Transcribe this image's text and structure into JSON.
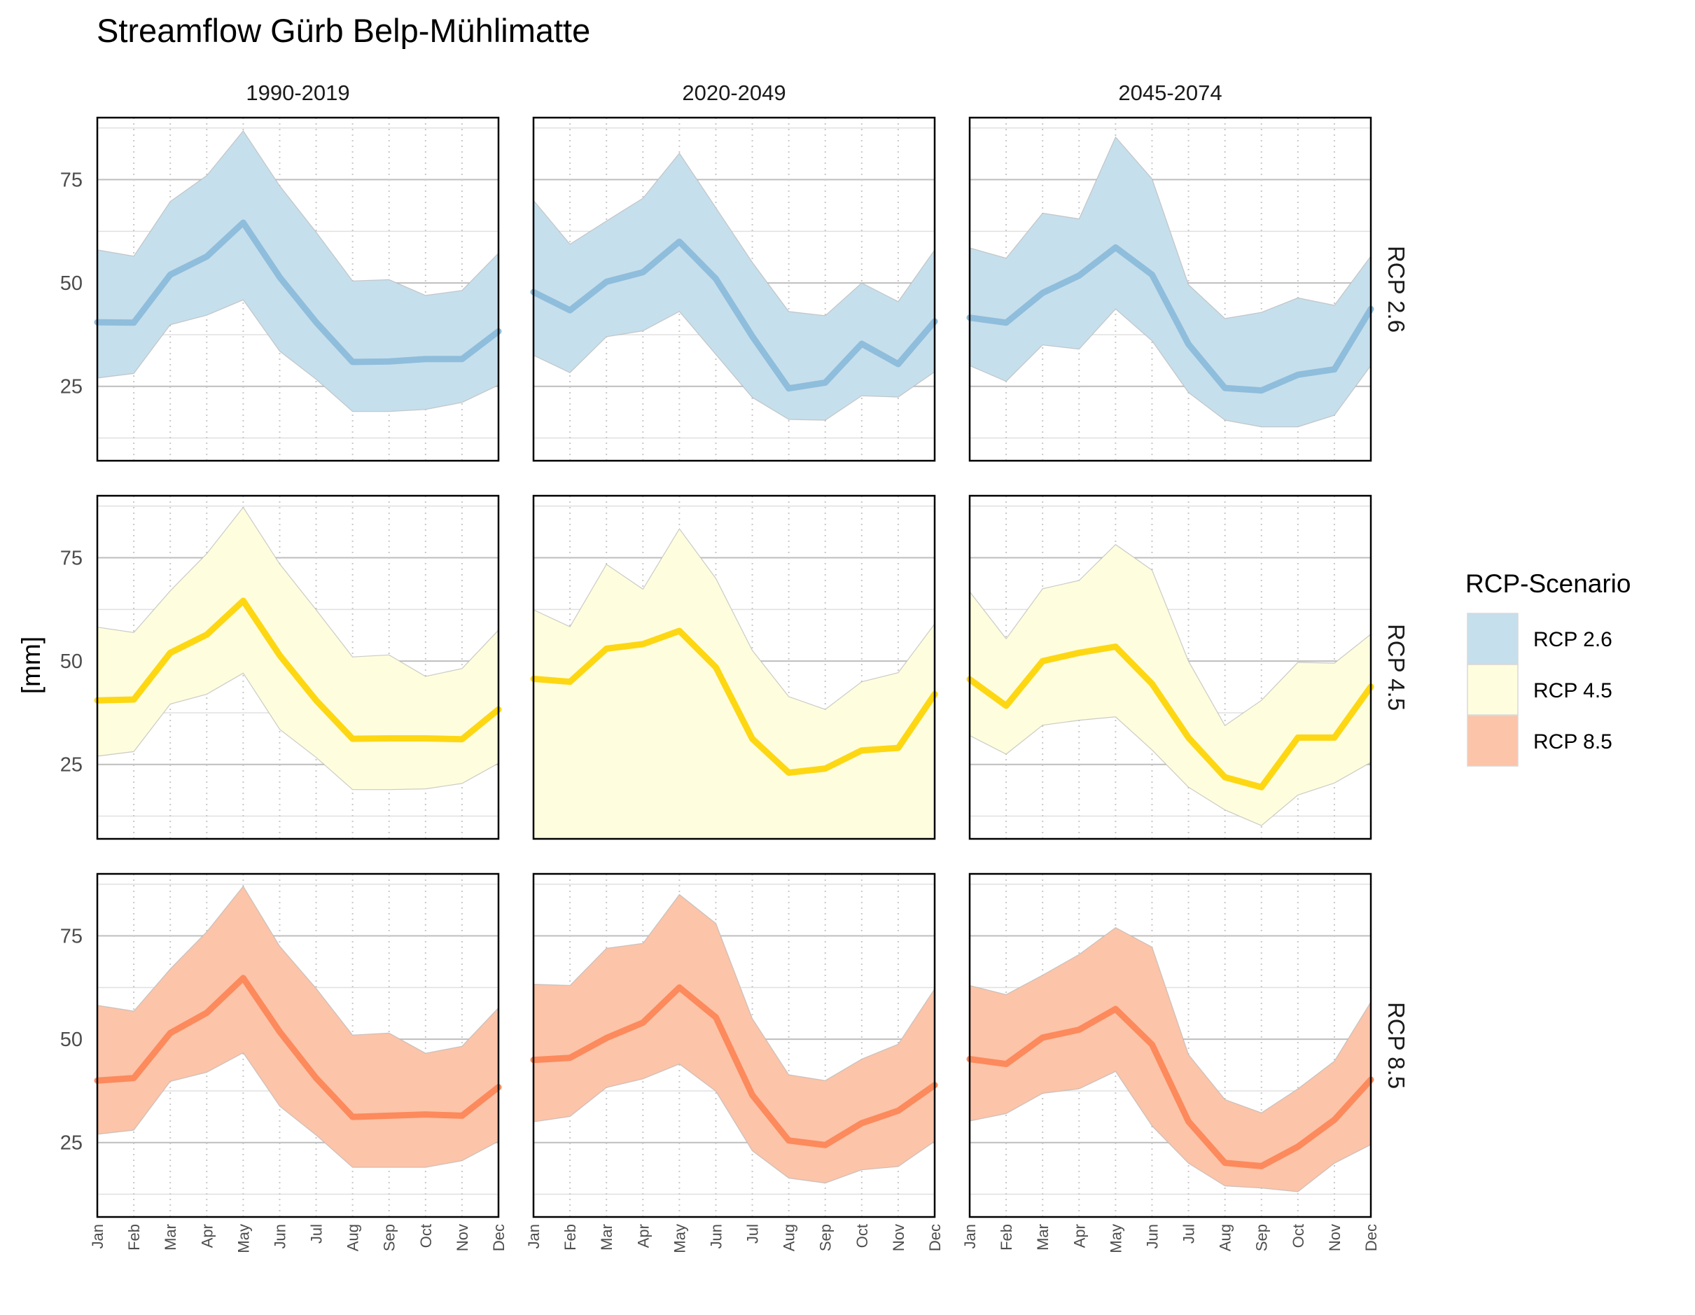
{
  "chart_data": {
    "type": "area",
    "title": "Streamflow Gürb Belp-Mühlimatte",
    "ylabel": "[mm]",
    "xlabel": "",
    "ylim": [
      7,
      90
    ],
    "yticks": [
      25,
      50,
      75
    ],
    "categories": [
      "Jan",
      "Feb",
      "Mar",
      "Apr",
      "May",
      "Jun",
      "Jul",
      "Aug",
      "Sep",
      "Oct",
      "Nov",
      "Dec"
    ],
    "columns": [
      "1990-2019",
      "2020-2049",
      "2045-2074"
    ],
    "rows": [
      "RCP 2.6",
      "RCP 4.5",
      "RCP 8.5"
    ],
    "legend": {
      "title": "RCP-Scenario",
      "position": "right",
      "items": [
        {
          "label": "RCP 2.6",
          "fill": "#c6dfec",
          "line": "#8fbddc"
        },
        {
          "label": "RCP 4.5",
          "fill": "#fefdde",
          "line": "#fdd712"
        },
        {
          "label": "RCP 8.5",
          "fill": "#fcc4a9",
          "line": "#fc8a5c"
        }
      ]
    },
    "panels": [
      {
        "row": "RCP 2.6",
        "col": "1990-2019",
        "median": [
          40.5,
          40.4,
          52,
          56.4,
          64.6,
          51.4,
          40.5,
          30.9,
          31,
          31.6,
          31.6,
          38.3
        ],
        "upper": [
          58,
          56.5,
          69.7,
          76,
          86.8,
          73.5,
          62.3,
          50.5,
          50.8,
          47,
          48.2,
          57.2
        ],
        "lower": [
          27,
          28.1,
          39.9,
          42.2,
          45.9,
          33.5,
          26.7,
          18.9,
          18.9,
          19.4,
          21.1,
          25.3
        ]
      },
      {
        "row": "RCP 2.6",
        "col": "2020-2049",
        "median": [
          47.8,
          43.4,
          50.3,
          52.6,
          60,
          51,
          37.1,
          24.5,
          25.9,
          35.3,
          30.4,
          40.7
        ],
        "upper": [
          70,
          59.4,
          65,
          70.5,
          81.4,
          68.2,
          55,
          43.1,
          42.1,
          50,
          45.5,
          58
        ],
        "lower": [
          32.5,
          28.3,
          37,
          38.4,
          43.1,
          32.7,
          22.3,
          17,
          16.8,
          22.7,
          22.4,
          28.5
        ]
      },
      {
        "row": "RCP 2.6",
        "col": "2045-2074",
        "median": [
          41.6,
          40.4,
          47.6,
          51.8,
          58.6,
          52,
          35.2,
          24.6,
          24,
          27.8,
          29.1,
          43.7
        ],
        "upper": [
          58.5,
          56,
          66.9,
          65.5,
          85.3,
          75.2,
          49.6,
          41.4,
          42.9,
          46.4,
          44.6,
          56.5
        ],
        "lower": [
          30,
          26.2,
          35,
          34,
          43.7,
          36,
          23.5,
          16.8,
          15.2,
          15.2,
          18,
          30
        ]
      },
      {
        "row": "RCP 4.5",
        "col": "1990-2019",
        "median": [
          40.5,
          40.7,
          52,
          56.4,
          64.6,
          51.4,
          40.5,
          31.2,
          31.3,
          31.3,
          31.1,
          38.3
        ],
        "upper": [
          58.2,
          56.9,
          67,
          76,
          87.2,
          73.5,
          62.4,
          51,
          51.5,
          46.3,
          48.2,
          57.5
        ],
        "lower": [
          27,
          28.1,
          39.6,
          42,
          47.1,
          33.5,
          26.7,
          18.9,
          18.9,
          19.1,
          20.4,
          25.3
        ]
      },
      {
        "row": "RCP 4.5",
        "col": "2020-2049",
        "median": [
          45.7,
          45,
          53,
          54.1,
          57.3,
          48.5,
          31.2,
          23,
          24,
          28.4,
          29,
          42
        ],
        "upper": [
          62.4,
          58.3,
          73.4,
          67.4,
          82,
          70,
          52.6,
          41.4,
          38.3,
          45,
          47.2,
          59
        ]
      },
      {
        "row": "RCP 4.5",
        "col": "2045-2074",
        "median": [
          45.6,
          39.2,
          50,
          52,
          53.5,
          44.5,
          31.5,
          21.9,
          19.5,
          31.5,
          31.5,
          43.8
        ],
        "upper": [
          66.8,
          55.4,
          67.5,
          69.5,
          78.2,
          72,
          50,
          34.4,
          40.5,
          49.7,
          49.5,
          56.5
        ],
        "lower": [
          32,
          27.5,
          34.5,
          35.7,
          36.5,
          28.5,
          19.5,
          14,
          10.2,
          17.6,
          20.5,
          25.5
        ]
      },
      {
        "row": "RCP 8.5",
        "col": "1990-2019",
        "median": [
          40,
          40.6,
          51.5,
          56.4,
          64.8,
          51.8,
          40.6,
          31.2,
          31.5,
          31.8,
          31.5,
          38.4
        ],
        "upper": [
          58.2,
          56.8,
          67,
          76,
          87,
          72.5,
          62.3,
          51,
          51.5,
          46.6,
          48.3,
          57.6
        ],
        "lower": [
          27,
          28,
          39.8,
          42,
          46.7,
          33.8,
          26.8,
          19,
          19,
          19,
          20.6,
          25.3
        ]
      },
      {
        "row": "RCP 8.5",
        "col": "2020-2049",
        "median": [
          45,
          45.5,
          50.3,
          54,
          62.5,
          55.3,
          36.5,
          25.5,
          24.4,
          29.7,
          32.7,
          38.9
        ],
        "upper": [
          63.3,
          63,
          72,
          73.2,
          85,
          78,
          55,
          41.4,
          40,
          45.2,
          48.8,
          62.2
        ],
        "lower": [
          30,
          31.3,
          38.3,
          40.4,
          44,
          37.4,
          23,
          16.4,
          15.2,
          18.4,
          19.2,
          25.3
        ]
      },
      {
        "row": "RCP 8.5",
        "col": "2045-2074",
        "median": [
          45.2,
          44,
          50.4,
          52.3,
          57.3,
          48.7,
          30.1,
          20.1,
          19.3,
          24,
          30.5,
          40.2
        ],
        "upper": [
          63,
          60.8,
          65.5,
          70.5,
          77,
          72.3,
          46.3,
          35.4,
          32.2,
          38,
          44.7,
          59
        ],
        "lower": [
          30.2,
          32,
          36.9,
          38,
          42.2,
          29,
          20,
          14.5,
          14,
          13.1,
          20,
          24.5
        ]
      }
    ]
  }
}
